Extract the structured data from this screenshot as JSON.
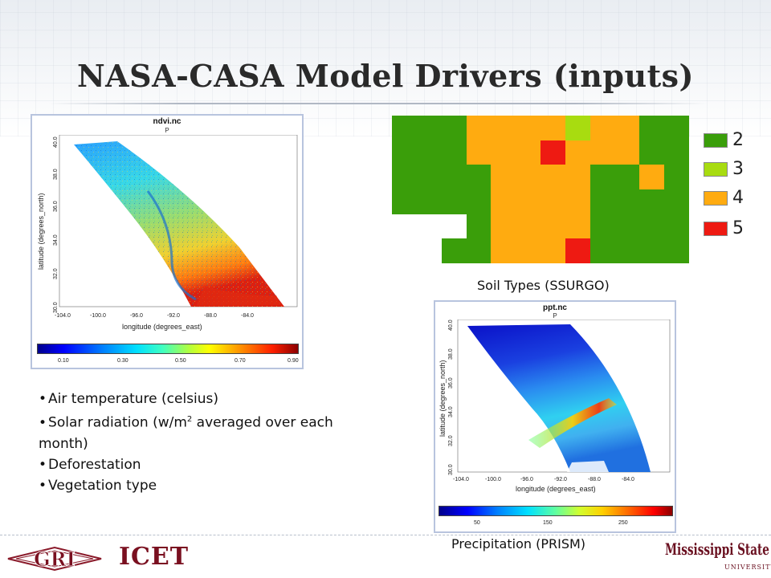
{
  "slide": {
    "title": "NASA-CASA Model Drivers (inputs)"
  },
  "ndvi_map": {
    "name": "ndvi.nc",
    "sub": "P",
    "ylabel": "latitude (degrees_north)",
    "xlabel": "longitude (degrees_east)",
    "y_ticks": [
      "40.0",
      "38.0",
      "36.0",
      "34.0",
      "32.0",
      "30.0"
    ],
    "x_ticks": [
      "-104.0",
      "-100.0",
      "-96.0",
      "-92.0",
      "-88.0",
      "-84.0"
    ],
    "colorbar_ticks": [
      "0.10",
      "0.30",
      "0.50",
      "0.70",
      "0.90"
    ]
  },
  "soil": {
    "legend": [
      {
        "label": "2",
        "color": "#3a9e0a"
      },
      {
        "label": "3",
        "color": "#a8dc10"
      },
      {
        "label": "4",
        "color": "#ffab10"
      },
      {
        "label": "5",
        "color": "#ee1a12"
      }
    ],
    "grid": [
      [
        2,
        2,
        2,
        4,
        4,
        4,
        4,
        3,
        4,
        4,
        2,
        2
      ],
      [
        2,
        2,
        2,
        4,
        4,
        4,
        5,
        4,
        4,
        4,
        2,
        2
      ],
      [
        2,
        2,
        2,
        2,
        4,
        4,
        4,
        4,
        2,
        2,
        4,
        2
      ],
      [
        2,
        2,
        2,
        2,
        4,
        4,
        4,
        4,
        2,
        2,
        2,
        2
      ],
      [
        0,
        0,
        0,
        2,
        4,
        4,
        4,
        4,
        2,
        2,
        2,
        2
      ],
      [
        0,
        0,
        2,
        2,
        4,
        4,
        4,
        5,
        2,
        2,
        2,
        2
      ]
    ],
    "caption": "Soil Types (SSURGO)"
  },
  "ppt_map": {
    "name": "ppt.nc",
    "sub": "P",
    "ylabel": "latitude (degrees_north)",
    "xlabel": "longitude (degrees_east)",
    "y_ticks": [
      "40.0",
      "38.0",
      "36.0",
      "34.0",
      "32.0",
      "30.0"
    ],
    "x_ticks": [
      "-104.0",
      "-100.0",
      "-96.0",
      "-92.0",
      "-88.0",
      "-84.0"
    ],
    "colorbar_ticks": [
      "50",
      "150",
      "250"
    ],
    "caption": "Precipitation (PRISM)"
  },
  "bullets": {
    "item1": "Air temperature (celsius)",
    "item2_pre": "Solar radiation (w/m",
    "item2_sup": "2",
    "item2_post": " averaged over each month)",
    "item3": "Deforestation",
    "item4": "Vegetation type"
  },
  "footer": {
    "gri_logo_text": "GRI",
    "icet_logo_text": "ICET",
    "msu_logo_text": "Mississippi State",
    "msu_logo_sub": "UNIVERSITY"
  },
  "colors": {
    "soil_2": "#3a9e0a",
    "soil_3": "#a8dc10",
    "soil_4": "#ffab10",
    "soil_5": "#ee1a12",
    "maroon": "#7a1020"
  }
}
